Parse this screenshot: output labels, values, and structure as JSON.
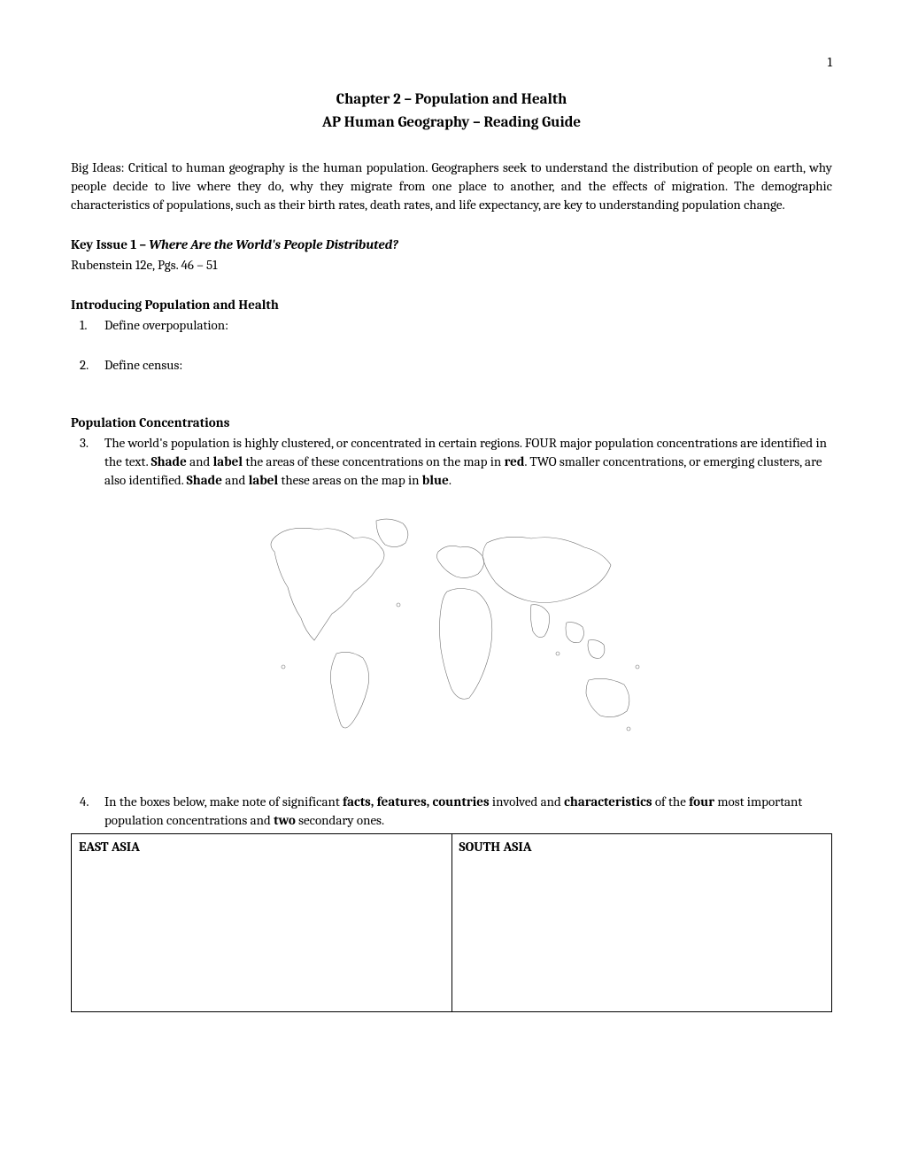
{
  "page_number": "1",
  "chapter_title": "Chapter 2 – Population and Health",
  "subtitle": "AP Human Geography – Reading Guide",
  "big_ideas": "Big Ideas: Critical to human geography is the human population. Geographers seek to understand the distribution of people on earth, why people decide to live where they do, why they migrate from one place to another, and the effects of migration. The demographic characteristics of populations, such as their birth rates, death rates, and life expectancy, are key to understanding population change.",
  "key_issue": {
    "label": "Key Issue 1 – ",
    "title": "Where Are the World's People Distributed?",
    "pages": "Rubenstein 12e, Pgs. 46 – 51"
  },
  "section1": {
    "heading": "Introducing Population and Health",
    "questions": [
      {
        "num": "1.",
        "text": "Define overpopulation:"
      },
      {
        "num": "2.",
        "text": "Define census:"
      }
    ]
  },
  "section2": {
    "heading": "Population Concentrations",
    "q3": {
      "num": "3.",
      "parts": [
        {
          "t": "The world's population is highly clustered, or concentrated in certain regions.  FOUR major population concentrations are identified in the text.  ",
          "b": false
        },
        {
          "t": "Shade",
          "b": true
        },
        {
          "t": " and ",
          "b": false
        },
        {
          "t": "label",
          "b": true
        },
        {
          "t": " the areas of these concentrations on the map in ",
          "b": false
        },
        {
          "t": "red",
          "b": true
        },
        {
          "t": ".  TWO smaller concentrations, or emerging clusters, are also identified.  ",
          "b": false
        },
        {
          "t": "Shade",
          "b": true
        },
        {
          "t": " and ",
          "b": false
        },
        {
          "t": "label",
          "b": true
        },
        {
          "t": " these areas on the map in ",
          "b": false
        },
        {
          "t": "blue",
          "b": true
        },
        {
          "t": ".",
          "b": false
        }
      ]
    },
    "q4": {
      "num": "4.",
      "parts": [
        {
          "t": "In the boxes below, make note of significant ",
          "b": false
        },
        {
          "t": "facts, features, countries",
          "b": true
        },
        {
          "t": " involved and ",
          "b": false
        },
        {
          "t": "characteristics",
          "b": true
        },
        {
          "t": " of the ",
          "b": false
        },
        {
          "t": "four",
          "b": true
        },
        {
          "t": " most important population concentrations and ",
          "b": false
        },
        {
          "t": "two",
          "b": true
        },
        {
          "t": " secondary ones.",
          "b": false
        }
      ]
    },
    "table": {
      "cell1": "EAST ASIA",
      "cell2": "SOUTH ASIA"
    }
  },
  "map": {
    "stroke_color": "#707070",
    "stroke_width": 0.6,
    "fill_color": "#ffffff"
  }
}
